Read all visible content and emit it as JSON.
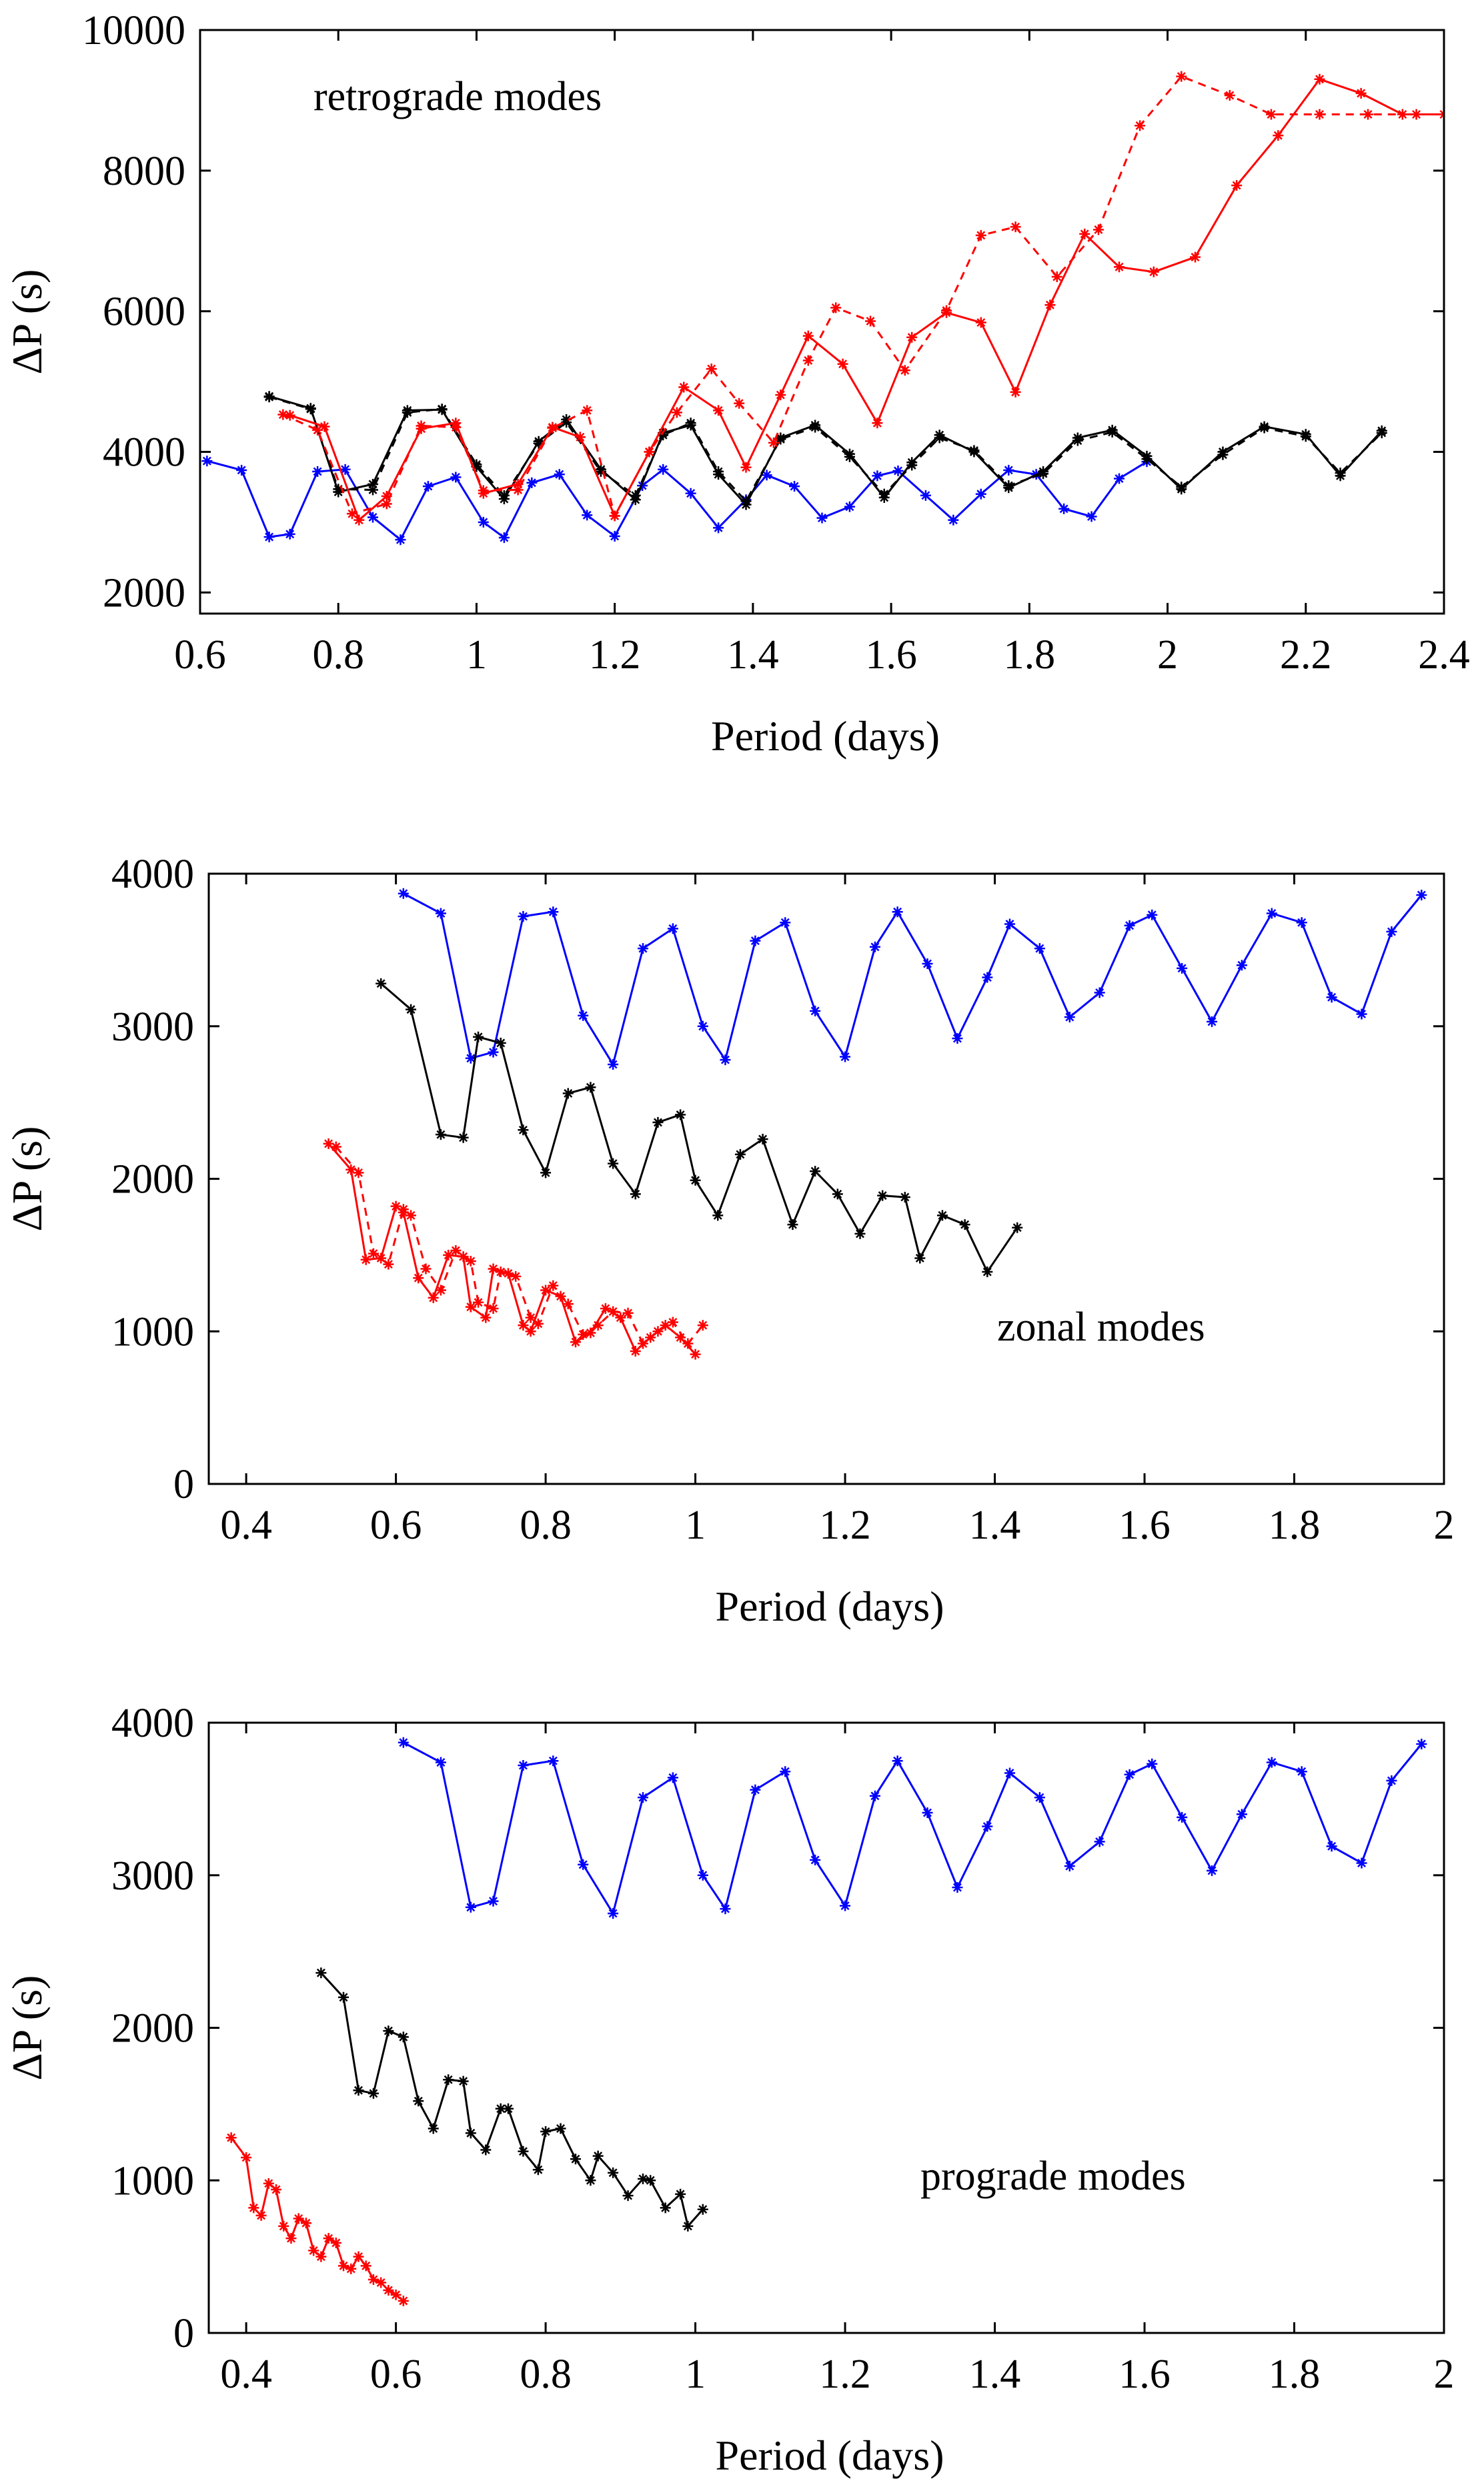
{
  "chart_data": [
    {
      "type": "line",
      "title": "",
      "annotation": "retrograde modes",
      "xlabel": "Period (days)",
      "ylabel": "ΔP (s)",
      "xlim": [
        0.6,
        2.4
      ],
      "ylim": [
        1700,
        10000
      ],
      "xticks": [
        0.6,
        0.8,
        1,
        1.2,
        1.4,
        1.6,
        1.8,
        2,
        2.2,
        2.4
      ],
      "xtick_labels": [
        "0.6",
        "0.8",
        "1",
        "1.2",
        "1.4",
        "1.6",
        "1.8",
        "2",
        "2.2",
        "2.4"
      ],
      "yticks": [
        2000,
        4000,
        6000,
        8000,
        10000
      ],
      "ytick_labels": [
        "2000",
        "4000",
        "6000",
        "8000",
        "10000"
      ],
      "series": [
        {
          "name": "blue",
          "color": "#0000ff",
          "style": "solid",
          "x": [
            0.61,
            0.66,
            0.7,
            0.73,
            0.77,
            0.81,
            0.85,
            0.89,
            0.93,
            0.97,
            1.01,
            1.04,
            1.08,
            1.12,
            1.16,
            1.2,
            1.24,
            1.27,
            1.31,
            1.35,
            1.39,
            1.42,
            1.46,
            1.5,
            1.54,
            1.58,
            1.61,
            1.65,
            1.69,
            1.73,
            1.77,
            1.81,
            1.85,
            1.89,
            1.93,
            1.97
          ],
          "y": [
            3870,
            3740,
            2790,
            2830,
            3720,
            3750,
            3070,
            2750,
            3510,
            3640,
            3000,
            2780,
            3560,
            3680,
            3100,
            2800,
            3520,
            3750,
            3410,
            2920,
            3320,
            3670,
            3510,
            3060,
            3220,
            3660,
            3730,
            3380,
            3030,
            3400,
            3740,
            3680,
            3190,
            3080,
            3620,
            3860
          ]
        },
        {
          "name": "black solid",
          "color": "#000000",
          "style": "solid",
          "x": [
            0.7,
            0.76,
            0.8,
            0.85,
            0.9,
            0.95,
            1,
            1.04,
            1.09,
            1.13,
            1.18,
            1.23,
            1.27,
            1.31,
            1.35,
            1.39,
            1.44,
            1.49,
            1.54,
            1.59,
            1.63,
            1.67,
            1.72,
            1.77,
            1.82,
            1.87,
            1.92,
            1.97,
            2.02,
            2.08,
            2.14,
            2.2,
            2.25,
            2.31
          ],
          "y": [
            4790,
            4620,
            3430,
            3540,
            4590,
            4600,
            3790,
            3330,
            4150,
            4460,
            3750,
            3320,
            4270,
            4380,
            3680,
            3250,
            4200,
            4380,
            3970,
            3350,
            3850,
            4240,
            4000,
            3490,
            3720,
            4200,
            4310,
            3940,
            3470,
            4000,
            4360,
            4250,
            3660,
            4300
          ]
        },
        {
          "name": "black dashed",
          "color": "#000000",
          "style": "dashed",
          "x": [
            0.7,
            0.76,
            0.8,
            0.85,
            0.9,
            0.95,
            1,
            1.04,
            1.09,
            1.13,
            1.18,
            1.23,
            1.27,
            1.31,
            1.35,
            1.39,
            1.44,
            1.49,
            1.54,
            1.59,
            1.63,
            1.67,
            1.72,
            1.77,
            1.82,
            1.87,
            1.92,
            1.97,
            2.02,
            2.08,
            2.14,
            2.2,
            2.25,
            2.31
          ],
          "y": [
            4780,
            4610,
            3470,
            3460,
            4560,
            4610,
            3820,
            3380,
            4120,
            4420,
            3720,
            3380,
            4240,
            4410,
            3720,
            3300,
            4180,
            4350,
            3930,
            3400,
            3810,
            4200,
            4020,
            3520,
            3690,
            4160,
            4280,
            3900,
            3500,
            3960,
            4340,
            4220,
            3700,
            4270
          ]
        },
        {
          "name": "red solid",
          "color": "#ff0000",
          "style": "solid",
          "x": [
            0.73,
            0.78,
            0.83,
            0.87,
            0.92,
            0.97,
            1.01,
            1.06,
            1.11,
            1.15,
            1.2,
            1.25,
            1.3,
            1.35,
            1.39,
            1.44,
            1.48,
            1.53,
            1.58,
            1.63,
            1.68,
            1.73,
            1.78,
            1.83,
            1.88,
            1.93,
            1.98,
            2.04,
            2.1,
            2.16,
            2.22,
            2.28,
            2.34,
            2.4
          ],
          "y": [
            4520,
            4360,
            3030,
            3370,
            4330,
            4410,
            3410,
            3540,
            4350,
            4210,
            3090,
            4000,
            4920,
            4590,
            3780,
            4810,
            5650,
            5250,
            4410,
            5630,
            5980,
            5840,
            4850,
            6090,
            7100,
            6630,
            6560,
            6770,
            7790,
            8500,
            9300,
            9100,
            8800,
            8800
          ]
        },
        {
          "name": "red dashed",
          "color": "#ff0000",
          "style": "dashed",
          "x": [
            0.72,
            0.77,
            0.82,
            0.87,
            0.92,
            0.97,
            1.01,
            1.06,
            1.11,
            1.16,
            1.2,
            1.25,
            1.29,
            1.34,
            1.38,
            1.43,
            1.48,
            1.52,
            1.57,
            1.62,
            1.68,
            1.73,
            1.78,
            1.84,
            1.9,
            1.96,
            2.02,
            2.09,
            2.15,
            2.22,
            2.29,
            2.36
          ],
          "y": [
            4530,
            4310,
            3120,
            3260,
            4370,
            4350,
            3450,
            3460,
            4340,
            4590,
            3090,
            4000,
            4560,
            5180,
            4690,
            4130,
            5300,
            6050,
            5860,
            5160,
            6010,
            7080,
            7200,
            6490,
            7160,
            8640,
            9340,
            9070,
            8800,
            8800,
            8800,
            8800
          ]
        }
      ]
    },
    {
      "type": "line",
      "title": "",
      "annotation": "zonal modes",
      "xlabel": "Period (days)",
      "ylabel": "ΔP (s)",
      "xlim": [
        0.35,
        2.0
      ],
      "ylim": [
        0,
        4000
      ],
      "xticks": [
        0.4,
        0.6,
        0.8,
        1,
        1.2,
        1.4,
        1.6,
        1.8,
        2
      ],
      "xtick_labels": [
        "0.4",
        "0.6",
        "0.8",
        "1",
        "1.2",
        "1.4",
        "1.6",
        "1.8",
        "2"
      ],
      "yticks": [
        0,
        1000,
        2000,
        3000,
        4000
      ],
      "ytick_labels": [
        "0",
        "1000",
        "2000",
        "3000",
        "4000"
      ],
      "series": [
        {
          "name": "blue",
          "color": "#0000ff",
          "style": "solid",
          "x": [
            0.61,
            0.66,
            0.7,
            0.73,
            0.77,
            0.81,
            0.85,
            0.89,
            0.93,
            0.97,
            1.01,
            1.04,
            1.08,
            1.12,
            1.16,
            1.2,
            1.24,
            1.27,
            1.31,
            1.35,
            1.39,
            1.42,
            1.46,
            1.5,
            1.54,
            1.58,
            1.61,
            1.65,
            1.69,
            1.73,
            1.77,
            1.81,
            1.85,
            1.89,
            1.93,
            1.97
          ],
          "y": [
            3870,
            3740,
            2790,
            2830,
            3720,
            3750,
            3070,
            2750,
            3510,
            3640,
            3000,
            2780,
            3560,
            3680,
            3100,
            2800,
            3520,
            3750,
            3410,
            2920,
            3320,
            3670,
            3510,
            3060,
            3220,
            3660,
            3730,
            3380,
            3030,
            3400,
            3740,
            3680,
            3190,
            3080,
            3620,
            3860
          ]
        },
        {
          "name": "black",
          "color": "#000000",
          "style": "solid",
          "x": [
            0.58,
            0.62,
            0.66,
            0.69,
            0.71,
            0.74,
            0.77,
            0.8,
            0.83,
            0.86,
            0.89,
            0.92,
            0.95,
            0.98,
            1.0,
            1.03,
            1.06,
            1.09,
            1.13,
            1.16,
            1.19,
            1.22,
            1.25,
            1.28,
            1.3,
            1.33,
            1.36,
            1.39,
            1.43
          ],
          "y": [
            3280,
            3110,
            2290,
            2270,
            2930,
            2890,
            2320,
            2040,
            2560,
            2600,
            2100,
            1900,
            2370,
            2420,
            1990,
            1760,
            2160,
            2260,
            1700,
            2050,
            1900,
            1640,
            1890,
            1880,
            1480,
            1760,
            1700,
            1390,
            1680
          ]
        },
        {
          "name": "red solid",
          "color": "#ff0000",
          "style": "solid",
          "x": [
            0.51,
            0.54,
            0.56,
            0.58,
            0.6,
            0.61,
            0.63,
            0.65,
            0.67,
            0.69,
            0.7,
            0.72,
            0.73,
            0.75,
            0.77,
            0.78,
            0.8,
            0.82,
            0.84,
            0.86,
            0.88,
            0.9,
            0.92,
            0.94,
            0.96,
            0.98,
            1.0
          ],
          "y": [
            2230,
            2060,
            1470,
            1480,
            1820,
            1780,
            1350,
            1220,
            1500,
            1490,
            1160,
            1090,
            1410,
            1380,
            1040,
            1000,
            1270,
            1230,
            930,
            990,
            1150,
            1090,
            870,
            960,
            1040,
            960,
            850
          ]
        },
        {
          "name": "red dashed",
          "color": "#ff0000",
          "style": "dashed",
          "x": [
            0.52,
            0.55,
            0.57,
            0.59,
            0.61,
            0.62,
            0.64,
            0.66,
            0.68,
            0.7,
            0.71,
            0.73,
            0.74,
            0.76,
            0.78,
            0.79,
            0.81,
            0.83,
            0.85,
            0.87,
            0.89,
            0.91,
            0.93,
            0.95,
            0.97,
            0.99,
            1.01
          ],
          "y": [
            2210,
            2040,
            1510,
            1440,
            1800,
            1760,
            1410,
            1270,
            1530,
            1460,
            1190,
            1150,
            1390,
            1360,
            1090,
            1050,
            1300,
            1180,
            980,
            1040,
            1130,
            1120,
            920,
            1000,
            1060,
            920,
            1040
          ]
        }
      ]
    },
    {
      "type": "line",
      "title": "",
      "annotation": "prograde modes",
      "xlabel": "Period (days)",
      "ylabel": "ΔP (s)",
      "xlim": [
        0.35,
        2.0
      ],
      "ylim": [
        0,
        4000
      ],
      "xticks": [
        0.4,
        0.6,
        0.8,
        1,
        1.2,
        1.4,
        1.6,
        1.8,
        2
      ],
      "xtick_labels": [
        "0.4",
        "0.6",
        "0.8",
        "1",
        "1.2",
        "1.4",
        "1.6",
        "1.8",
        "2"
      ],
      "yticks": [
        0,
        1000,
        2000,
        3000,
        4000
      ],
      "ytick_labels": [
        "0",
        "1000",
        "2000",
        "3000",
        "4000"
      ],
      "series": [
        {
          "name": "blue",
          "color": "#0000ff",
          "style": "solid",
          "x": [
            0.61,
            0.66,
            0.7,
            0.73,
            0.77,
            0.81,
            0.85,
            0.89,
            0.93,
            0.97,
            1.01,
            1.04,
            1.08,
            1.12,
            1.16,
            1.2,
            1.24,
            1.27,
            1.31,
            1.35,
            1.39,
            1.42,
            1.46,
            1.5,
            1.54,
            1.58,
            1.61,
            1.65,
            1.69,
            1.73,
            1.77,
            1.81,
            1.85,
            1.89,
            1.93,
            1.97
          ],
          "y": [
            3870,
            3740,
            2790,
            2830,
            3720,
            3750,
            3070,
            2750,
            3510,
            3640,
            3000,
            2780,
            3560,
            3680,
            3100,
            2800,
            3520,
            3750,
            3410,
            2920,
            3320,
            3670,
            3510,
            3060,
            3220,
            3660,
            3730,
            3380,
            3030,
            3400,
            3740,
            3680,
            3190,
            3080,
            3620,
            3860
          ]
        },
        {
          "name": "black",
          "color": "#000000",
          "style": "solid",
          "x": [
            0.5,
            0.53,
            0.55,
            0.57,
            0.59,
            0.61,
            0.63,
            0.65,
            0.67,
            0.69,
            0.7,
            0.72,
            0.74,
            0.75,
            0.77,
            0.79,
            0.8,
            0.82,
            0.84,
            0.86,
            0.87,
            0.89,
            0.91,
            0.93,
            0.94,
            0.96,
            0.98,
            0.99,
            1.01
          ],
          "y": [
            2360,
            2200,
            1590,
            1570,
            1980,
            1940,
            1520,
            1340,
            1660,
            1650,
            1310,
            1200,
            1470,
            1470,
            1190,
            1070,
            1320,
            1340,
            1140,
            1000,
            1160,
            1050,
            900,
            1010,
            1000,
            820,
            910,
            700,
            810
          ]
        },
        {
          "name": "red",
          "color": "#ff0000",
          "style": "solid",
          "x": [
            0.38,
            0.4,
            0.41,
            0.42,
            0.43,
            0.44,
            0.45,
            0.46,
            0.47,
            0.48,
            0.49,
            0.5,
            0.51,
            0.52,
            0.53,
            0.54,
            0.55,
            0.56,
            0.57,
            0.58,
            0.59,
            0.6,
            0.61
          ],
          "y": [
            1280,
            1150,
            820,
            770,
            980,
            940,
            700,
            620,
            750,
            720,
            540,
            500,
            620,
            590,
            440,
            420,
            500,
            440,
            350,
            330,
            280,
            250,
            210
          ]
        }
      ]
    }
  ]
}
